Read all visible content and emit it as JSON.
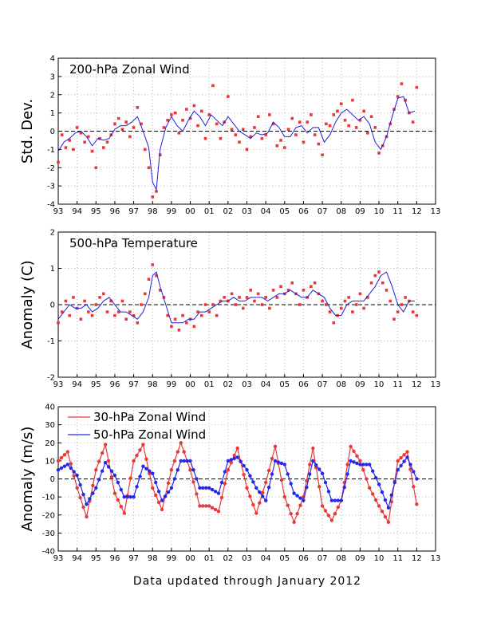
{
  "footer": "Data updated through January 2012",
  "colors": {
    "red": "#e83838",
    "blue": "#2626e8",
    "line": "#1f1fd8",
    "grid": "#b4b4b4"
  },
  "chart_data": [
    {
      "type": "scatter",
      "title": "200-hPa Zonal Wind",
      "ylabel": "Std. Dev.",
      "xlim": [
        1993,
        2013
      ],
      "ylim": [
        -4,
        4
      ],
      "yticks": [
        -4,
        -3,
        -2,
        -1,
        0,
        1,
        2,
        3,
        4
      ],
      "xtick_labels": [
        "93",
        "94",
        "95",
        "96",
        "97",
        "98",
        "99",
        "00",
        "01",
        "02",
        "03",
        "04",
        "05",
        "06",
        "07",
        "08",
        "09",
        "10",
        "11",
        "12",
        "13"
      ],
      "zero_line": true,
      "grid": true,
      "series": [
        {
          "style": "points",
          "color": "#e83838",
          "x": [
            1993.0,
            1993.2,
            1993.4,
            1993.6,
            1993.8,
            1994.0,
            1994.2,
            1994.4,
            1994.6,
            1994.8,
            1995.0,
            1995.2,
            1995.4,
            1995.6,
            1995.8,
            1996.0,
            1996.2,
            1996.4,
            1996.6,
            1996.8,
            1997.0,
            1997.2,
            1997.4,
            1997.6,
            1997.8,
            1998.0,
            1998.2,
            1998.4,
            1998.6,
            1998.8,
            1999.0,
            1999.2,
            1999.4,
            1999.6,
            1999.8,
            2000.0,
            2000.2,
            2000.4,
            2000.6,
            2000.8,
            2001.0,
            2001.2,
            2001.4,
            2001.6,
            2001.8,
            2002.0,
            2002.2,
            2002.4,
            2002.6,
            2002.8,
            2003.0,
            2003.2,
            2003.4,
            2003.6,
            2003.8,
            2004.0,
            2004.2,
            2004.4,
            2004.6,
            2004.8,
            2005.0,
            2005.2,
            2005.4,
            2005.6,
            2005.8,
            2006.0,
            2006.2,
            2006.4,
            2006.6,
            2006.8,
            2007.0,
            2007.2,
            2007.4,
            2007.6,
            2007.8,
            2008.0,
            2008.2,
            2008.4,
            2008.6,
            2008.8,
            2009.0,
            2009.2,
            2009.4,
            2009.6,
            2009.8,
            2010.0,
            2010.2,
            2010.4,
            2010.6,
            2010.8,
            2011.0,
            2011.2,
            2011.4,
            2011.6,
            2011.8,
            2012.0
          ],
          "y": [
            -1.7,
            -0.2,
            -0.9,
            -0.5,
            -1.0,
            0.2,
            -0.1,
            -0.6,
            -0.3,
            -1.1,
            -2.0,
            -0.4,
            -0.9,
            -0.6,
            -0.2,
            0.4,
            0.7,
            0.1,
            0.5,
            -0.3,
            0.2,
            1.3,
            0.4,
            -1.0,
            -2.0,
            -3.6,
            -3.3,
            -1.3,
            0.2,
            0.6,
            0.9,
            1.0,
            -0.1,
            0.6,
            1.2,
            0.7,
            1.4,
            0.3,
            1.1,
            -0.4,
            0.9,
            2.5,
            0.4,
            -0.4,
            0.5,
            1.9,
            0.1,
            -0.2,
            -0.6,
            0.1,
            -1.0,
            -0.3,
            0.2,
            0.8,
            -0.4,
            -0.2,
            0.9,
            0.4,
            -0.8,
            -0.5,
            -0.9,
            0.1,
            0.7,
            -0.2,
            0.5,
            -0.6,
            0.5,
            0.9,
            -0.2,
            -0.7,
            -1.3,
            0.4,
            0.3,
            0.9,
            1.1,
            1.5,
            0.6,
            0.3,
            1.7,
            0.2,
            0.6,
            1.1,
            -0.1,
            0.8,
            0.2,
            -1.2,
            -0.8,
            -0.3,
            0.4,
            1.2,
            1.9,
            2.6,
            1.7,
            1.0,
            0.5,
            2.4
          ]
        },
        {
          "style": "line",
          "color": "#1f1fd8",
          "x": [
            1993.0,
            1993.3,
            1993.6,
            1993.9,
            1994.2,
            1994.5,
            1994.8,
            1995.1,
            1995.4,
            1995.7,
            1996.0,
            1996.3,
            1996.6,
            1996.9,
            1997.2,
            1997.5,
            1997.8,
            1998.0,
            1998.2,
            1998.4,
            1998.7,
            1999.0,
            1999.3,
            1999.6,
            1999.9,
            2000.2,
            2000.5,
            2000.8,
            2001.1,
            2001.4,
            2001.7,
            2002.0,
            2002.3,
            2002.6,
            2002.9,
            2003.2,
            2003.5,
            2003.8,
            2004.1,
            2004.4,
            2004.7,
            2005.0,
            2005.3,
            2005.6,
            2005.9,
            2006.2,
            2006.5,
            2006.8,
            2007.1,
            2007.4,
            2007.7,
            2008.0,
            2008.3,
            2008.6,
            2008.9,
            2009.2,
            2009.5,
            2009.8,
            2010.1,
            2010.4,
            2010.7,
            2011.0,
            2011.3,
            2011.6,
            2011.9
          ],
          "y": [
            -1.1,
            -0.6,
            -0.4,
            -0.1,
            0.0,
            -0.3,
            -0.8,
            -0.4,
            -0.5,
            -0.4,
            0.1,
            0.3,
            0.3,
            0.5,
            0.8,
            0.0,
            -0.9,
            -2.8,
            -3.2,
            -1.0,
            0.2,
            0.8,
            0.3,
            0.0,
            0.6,
            1.1,
            0.8,
            0.3,
            0.9,
            0.6,
            0.3,
            0.8,
            0.4,
            0.0,
            -0.2,
            -0.4,
            -0.1,
            -0.2,
            -0.1,
            0.5,
            0.2,
            -0.3,
            -0.3,
            0.2,
            0.3,
            -0.1,
            0.2,
            0.2,
            -0.6,
            -0.2,
            0.5,
            1.0,
            1.2,
            0.9,
            0.6,
            0.8,
            0.4,
            -0.6,
            -1.0,
            -0.3,
            0.8,
            1.8,
            1.9,
            1.0,
            1.1
          ]
        }
      ]
    },
    {
      "type": "scatter",
      "title": "500-hPa Temperature",
      "ylabel": "Anomaly (C)",
      "xlim": [
        1993,
        2013
      ],
      "ylim": [
        -2,
        2
      ],
      "yticks": [
        -2,
        -1,
        0,
        1,
        2
      ],
      "xtick_labels": [
        "93",
        "94",
        "95",
        "96",
        "97",
        "98",
        "99",
        "00",
        "01",
        "02",
        "03",
        "04",
        "05",
        "06",
        "07",
        "08",
        "09",
        "10",
        "11",
        "12",
        "13"
      ],
      "zero_line": true,
      "grid": true,
      "series": [
        {
          "style": "points",
          "color": "#e83838",
          "x": [
            1993.0,
            1993.2,
            1993.4,
            1993.6,
            1993.8,
            1994.0,
            1994.2,
            1994.4,
            1994.6,
            1994.8,
            1995.0,
            1995.2,
            1995.4,
            1995.6,
            1995.8,
            1996.0,
            1996.2,
            1996.4,
            1996.6,
            1996.8,
            1997.0,
            1997.2,
            1997.4,
            1997.6,
            1997.8,
            1998.0,
            1998.2,
            1998.4,
            1998.6,
            1998.8,
            1999.0,
            1999.2,
            1999.4,
            1999.6,
            1999.8,
            2000.0,
            2000.2,
            2000.4,
            2000.6,
            2000.8,
            2001.0,
            2001.2,
            2001.4,
            2001.6,
            2001.8,
            2002.0,
            2002.2,
            2002.4,
            2002.6,
            2002.8,
            2003.0,
            2003.2,
            2003.4,
            2003.6,
            2003.8,
            2004.0,
            2004.2,
            2004.4,
            2004.6,
            2004.8,
            2005.0,
            2005.2,
            2005.4,
            2005.6,
            2005.8,
            2006.0,
            2006.2,
            2006.4,
            2006.6,
            2006.8,
            2007.0,
            2007.2,
            2007.4,
            2007.6,
            2007.8,
            2008.0,
            2008.2,
            2008.4,
            2008.6,
            2008.8,
            2009.0,
            2009.2,
            2009.4,
            2009.6,
            2009.8,
            2010.0,
            2010.2,
            2010.4,
            2010.6,
            2010.8,
            2011.0,
            2011.2,
            2011.4,
            2011.6,
            2011.8,
            2012.0
          ],
          "y": [
            -0.5,
            -0.2,
            0.1,
            -0.3,
            0.2,
            -0.1,
            -0.4,
            0.1,
            -0.2,
            -0.3,
            0.0,
            0.2,
            0.3,
            -0.2,
            0.1,
            -0.3,
            -0.2,
            0.1,
            -0.4,
            -0.2,
            -0.3,
            -0.5,
            0.0,
            0.3,
            0.7,
            1.1,
            0.8,
            0.4,
            0.2,
            -0.3,
            -0.6,
            -0.4,
            -0.7,
            -0.3,
            -0.5,
            -0.4,
            -0.6,
            -0.2,
            -0.3,
            0.0,
            -0.2,
            0.0,
            -0.3,
            0.1,
            0.2,
            0.1,
            0.3,
            0.0,
            0.2,
            -0.1,
            0.2,
            0.4,
            0.1,
            0.3,
            0.0,
            0.2,
            -0.1,
            0.4,
            0.2,
            0.5,
            0.3,
            0.4,
            0.6,
            0.3,
            0.0,
            0.4,
            0.2,
            0.5,
            0.6,
            0.3,
            0.1,
            0.0,
            -0.2,
            -0.5,
            -0.3,
            -0.1,
            0.1,
            0.2,
            -0.2,
            0.0,
            0.3,
            -0.1,
            0.2,
            0.6,
            0.8,
            0.9,
            0.6,
            0.4,
            0.1,
            -0.4,
            -0.2,
            0.0,
            0.2,
            0.1,
            -0.2,
            -0.3
          ]
        },
        {
          "style": "line",
          "color": "#1f1fd8",
          "x": [
            1993.0,
            1993.3,
            1993.6,
            1993.9,
            1994.2,
            1994.5,
            1994.8,
            1995.1,
            1995.4,
            1995.7,
            1996.0,
            1996.3,
            1996.6,
            1996.9,
            1997.2,
            1997.5,
            1997.8,
            1998.0,
            1998.2,
            1998.4,
            1998.7,
            1999.0,
            1999.3,
            1999.6,
            1999.9,
            2000.2,
            2000.5,
            2000.8,
            2001.1,
            2001.4,
            2001.7,
            2002.0,
            2002.3,
            2002.6,
            2002.9,
            2003.2,
            2003.5,
            2003.8,
            2004.1,
            2004.4,
            2004.7,
            2005.0,
            2005.3,
            2005.6,
            2005.9,
            2006.2,
            2006.5,
            2006.8,
            2007.1,
            2007.4,
            2007.7,
            2008.0,
            2008.3,
            2008.6,
            2008.9,
            2009.2,
            2009.5,
            2009.8,
            2010.1,
            2010.4,
            2010.7,
            2011.0,
            2011.3,
            2011.6,
            2011.9
          ],
          "y": [
            -0.4,
            -0.2,
            0.0,
            -0.1,
            -0.1,
            0.0,
            -0.2,
            -0.1,
            0.1,
            0.2,
            0.0,
            -0.2,
            -0.2,
            -0.3,
            -0.4,
            -0.2,
            0.2,
            0.8,
            0.9,
            0.5,
            0.0,
            -0.5,
            -0.5,
            -0.5,
            -0.4,
            -0.4,
            -0.2,
            -0.2,
            -0.1,
            0.0,
            0.1,
            0.1,
            0.2,
            0.1,
            0.1,
            0.2,
            0.2,
            0.2,
            0.1,
            0.2,
            0.3,
            0.3,
            0.4,
            0.3,
            0.2,
            0.2,
            0.4,
            0.3,
            0.2,
            -0.1,
            -0.3,
            -0.3,
            0.0,
            0.1,
            0.1,
            0.1,
            0.3,
            0.5,
            0.8,
            0.9,
            0.5,
            0.0,
            -0.2,
            0.1,
            0.1
          ]
        }
      ]
    },
    {
      "type": "line",
      "ylabel": "Anomaly (m/s)",
      "xlim": [
        1993,
        2013
      ],
      "ylim": [
        -40,
        40
      ],
      "yticks": [
        -40,
        -30,
        -20,
        -10,
        0,
        10,
        20,
        30,
        40
      ],
      "xtick_labels": [
        "93",
        "94",
        "95",
        "96",
        "97",
        "98",
        "99",
        "00",
        "01",
        "02",
        "03",
        "04",
        "05",
        "06",
        "07",
        "08",
        "09",
        "10",
        "11",
        "12",
        "13"
      ],
      "zero_line": true,
      "grid": true,
      "legend": "top-left",
      "series": [
        {
          "name": "30-hPa Zonal Wind",
          "color": "#e83838",
          "x": [
            1993.0,
            1993.5,
            1994.0,
            1994.5,
            1995.0,
            1995.5,
            1996.0,
            1996.5,
            1997.0,
            1997.5,
            1998.0,
            1998.5,
            1999.0,
            1999.5,
            2000.0,
            2000.5,
            2001.0,
            2001.5,
            2002.0,
            2002.5,
            2003.0,
            2003.5,
            2004.0,
            2004.5,
            2005.0,
            2005.5,
            2006.0,
            2006.5,
            2007.0,
            2007.5,
            2008.0,
            2008.5,
            2009.0,
            2009.5,
            2010.0,
            2010.5,
            2011.0,
            2011.5,
            2012.0
          ],
          "y": [
            10,
            15,
            -5,
            -21,
            5,
            19,
            -8,
            -19,
            10,
            19,
            -5,
            -17,
            5,
            20,
            5,
            -15,
            -15,
            -18,
            5,
            17,
            -5,
            -19,
            -2,
            18,
            -10,
            -24,
            -10,
            17,
            -15,
            -23,
            -12,
            18,
            10,
            -5,
            -15,
            -24,
            10,
            15,
            -14
          ]
        },
        {
          "name": "50-hPa Zonal Wind",
          "color": "#2626e8",
          "x": [
            1993.0,
            1993.5,
            1994.0,
            1994.5,
            1995.0,
            1995.5,
            1996.0,
            1996.5,
            1997.0,
            1997.5,
            1998.0,
            1998.5,
            1999.0,
            1999.5,
            2000.0,
            2000.5,
            2001.0,
            2001.5,
            2002.0,
            2002.5,
            2003.0,
            2003.5,
            2004.0,
            2004.5,
            2005.0,
            2005.5,
            2006.0,
            2006.5,
            2007.0,
            2007.5,
            2008.0,
            2008.5,
            2009.0,
            2009.5,
            2010.0,
            2010.5,
            2011.0,
            2011.5,
            2012.0
          ],
          "y": [
            5,
            8,
            2,
            -14,
            -5,
            9,
            2,
            -10,
            -10,
            7,
            3,
            -12,
            -5,
            10,
            10,
            -5,
            -5,
            -8,
            10,
            12,
            5,
            -5,
            -12,
            10,
            8,
            -8,
            -12,
            10,
            3,
            -12,
            -12,
            10,
            8,
            8,
            -3,
            -16,
            5,
            12,
            0
          ]
        }
      ]
    }
  ]
}
